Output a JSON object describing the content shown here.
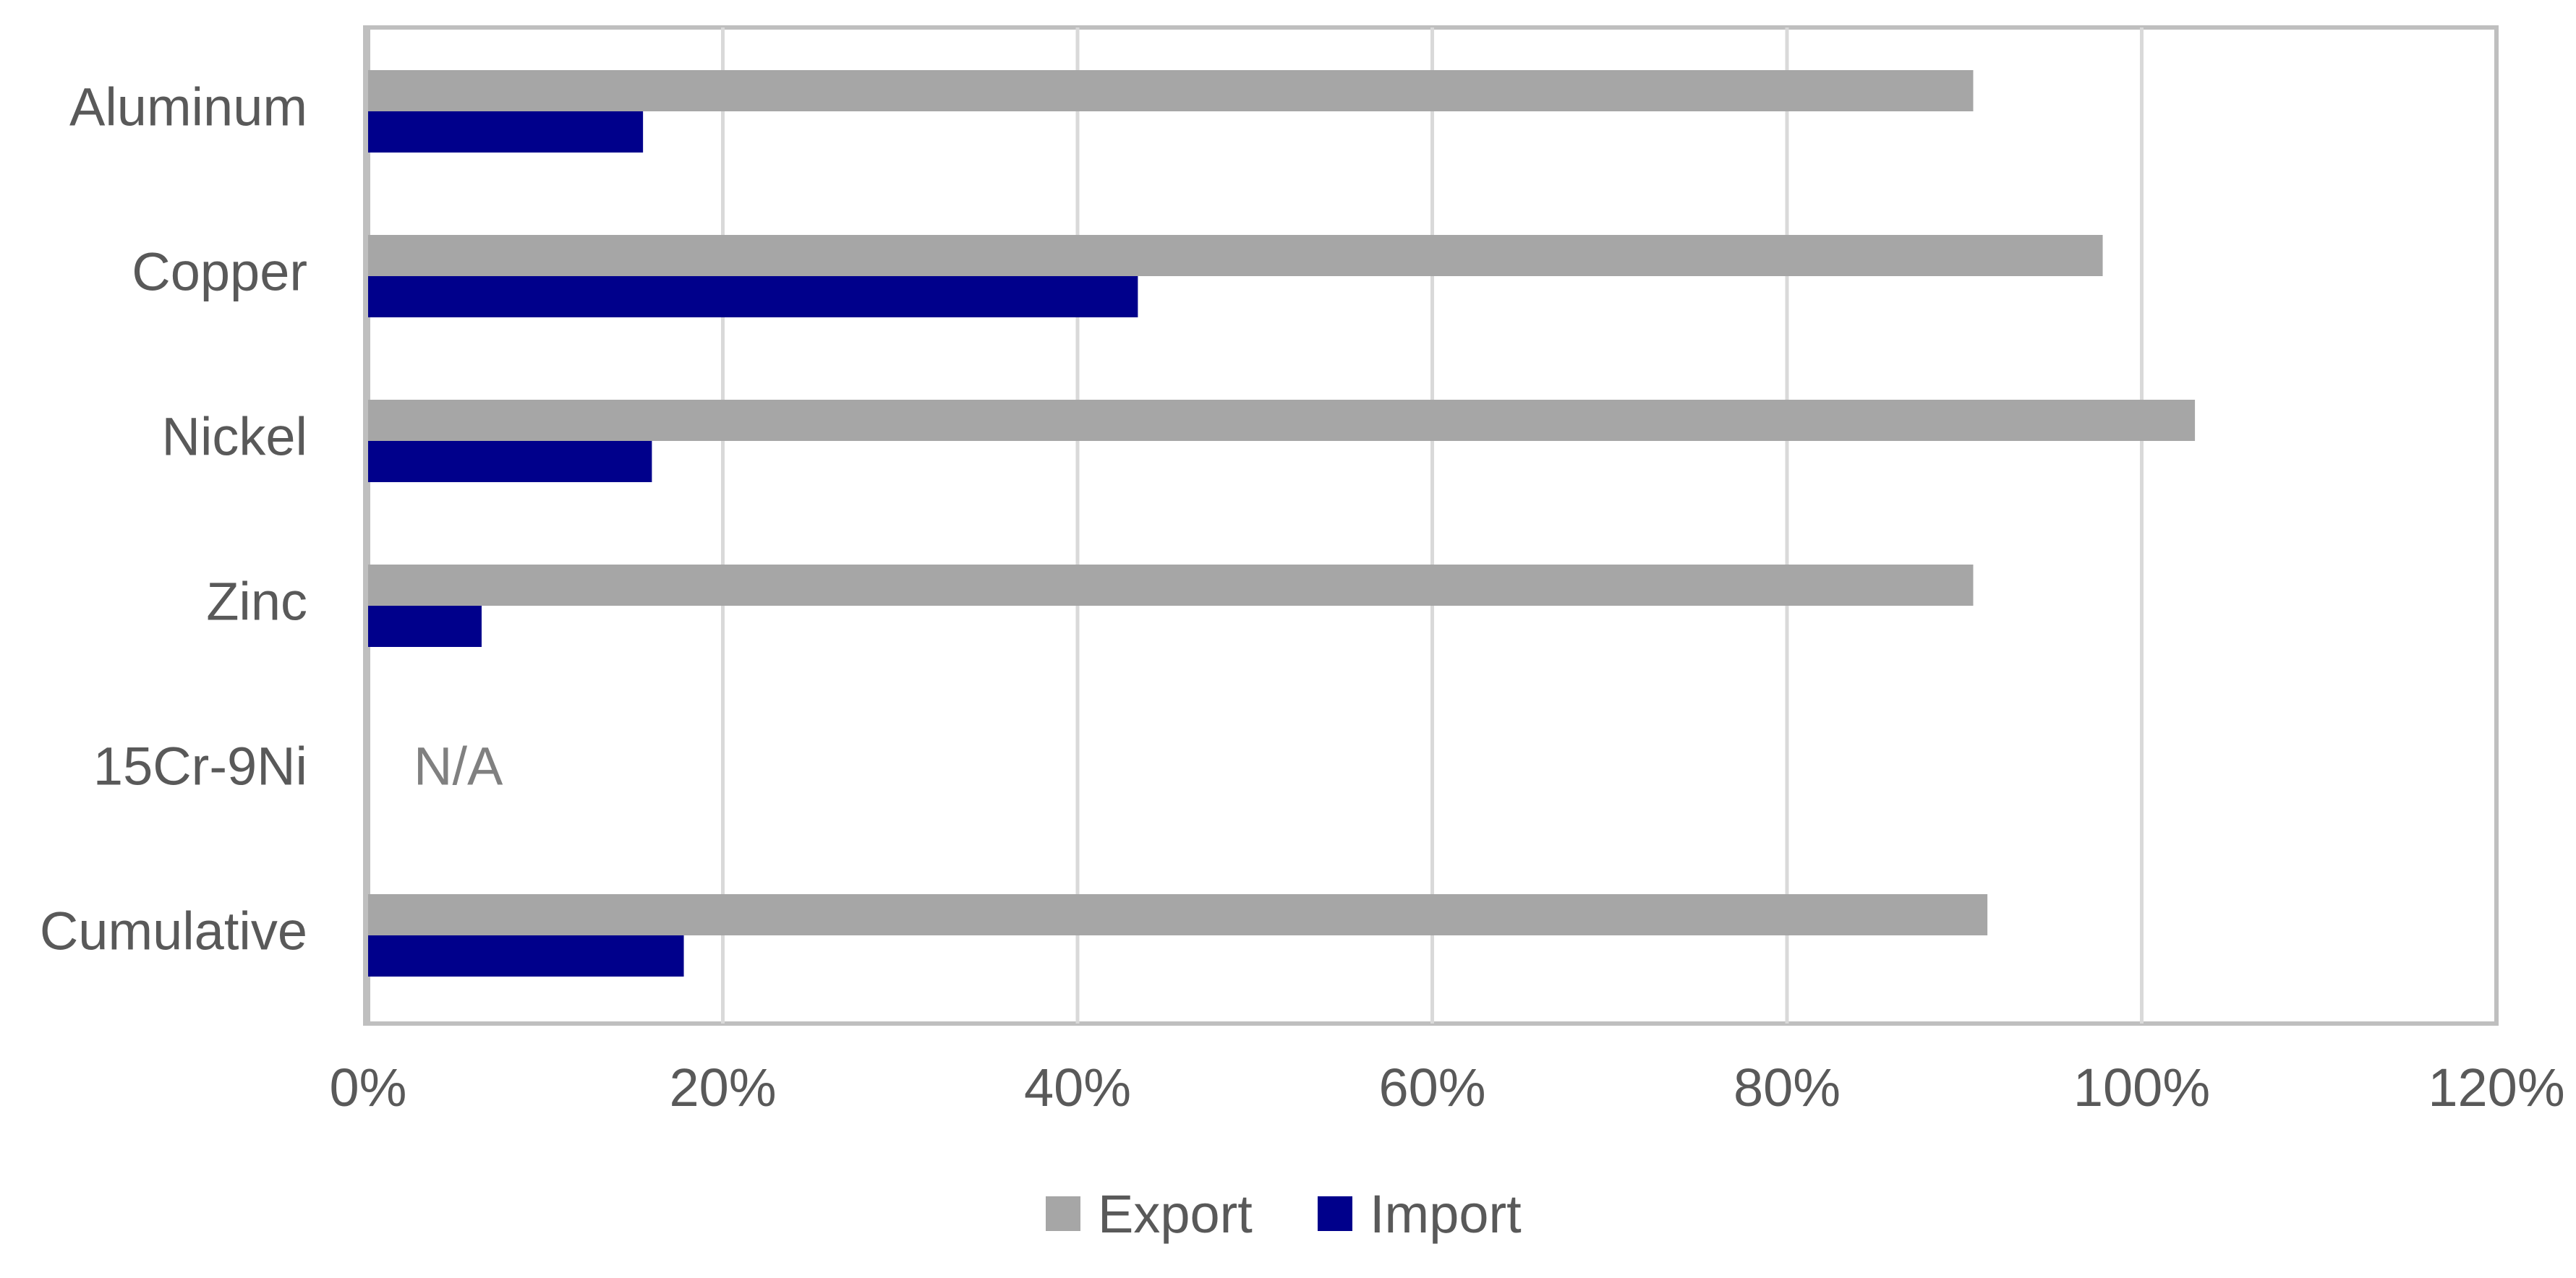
{
  "chart_data": {
    "type": "bar",
    "orientation": "horizontal",
    "categories": [
      "Aluminum",
      "Copper",
      "Nickel",
      "Zinc",
      "15Cr-9Ni",
      "Cumulative"
    ],
    "series": [
      {
        "name": "Export",
        "color": "#a6a6a6",
        "values": [
          0.905,
          0.978,
          1.03,
          0.905,
          null,
          0.913
        ]
      },
      {
        "name": "Import",
        "color": "#00008b",
        "values": [
          0.155,
          0.434,
          0.16,
          0.064,
          null,
          0.178
        ]
      }
    ],
    "x_ticks": [
      "0%",
      "20%",
      "40%",
      "60%",
      "80%",
      "100%",
      "120%"
    ],
    "xlim": [
      0,
      1.2
    ],
    "grid": "vertical",
    "legend_position": "bottom",
    "annotations": [
      {
        "category": "15Cr-9Ni",
        "text": "N/A"
      }
    ],
    "title": "",
    "xlabel": "",
    "ylabel": ""
  }
}
